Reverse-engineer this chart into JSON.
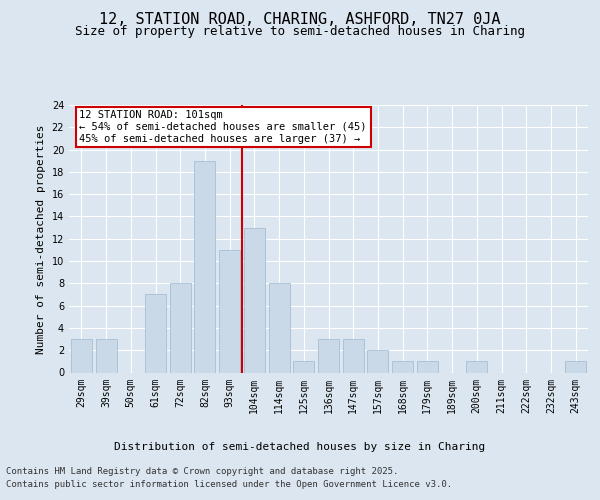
{
  "title": "12, STATION ROAD, CHARING, ASHFORD, TN27 0JA",
  "subtitle": "Size of property relative to semi-detached houses in Charing",
  "xlabel": "Distribution of semi-detached houses by size in Charing",
  "ylabel": "Number of semi-detached properties",
  "categories": [
    "29sqm",
    "39sqm",
    "50sqm",
    "61sqm",
    "72sqm",
    "82sqm",
    "93sqm",
    "104sqm",
    "114sqm",
    "125sqm",
    "136sqm",
    "147sqm",
    "157sqm",
    "168sqm",
    "179sqm",
    "189sqm",
    "200sqm",
    "211sqm",
    "222sqm",
    "232sqm",
    "243sqm"
  ],
  "values": [
    3,
    3,
    0,
    7,
    8,
    19,
    11,
    13,
    8,
    1,
    3,
    3,
    2,
    1,
    1,
    0,
    1,
    0,
    0,
    0,
    1
  ],
  "bar_color": "#c9d9e8",
  "bar_edge_color": "#a0b8d0",
  "vline_x_index": 6.5,
  "vline_color": "#cc0000",
  "annotation_title": "12 STATION ROAD: 101sqm",
  "annotation_line1": "← 54% of semi-detached houses are smaller (45)",
  "annotation_line2": "45% of semi-detached houses are larger (37) →",
  "annotation_box_color": "#ffffff",
  "annotation_box_edge": "#cc0000",
  "ylim": [
    0,
    24
  ],
  "yticks": [
    0,
    2,
    4,
    6,
    8,
    10,
    12,
    14,
    16,
    18,
    20,
    22,
    24
  ],
  "background_color": "#dce6f0",
  "axes_background": "#dce6f0",
  "grid_color": "#ffffff",
  "footer_line1": "Contains HM Land Registry data © Crown copyright and database right 2025.",
  "footer_line2": "Contains public sector information licensed under the Open Government Licence v3.0.",
  "title_fontsize": 11,
  "subtitle_fontsize": 9,
  "label_fontsize": 8,
  "tick_fontsize": 7,
  "annotation_fontsize": 7.5,
  "footer_fontsize": 6.5
}
